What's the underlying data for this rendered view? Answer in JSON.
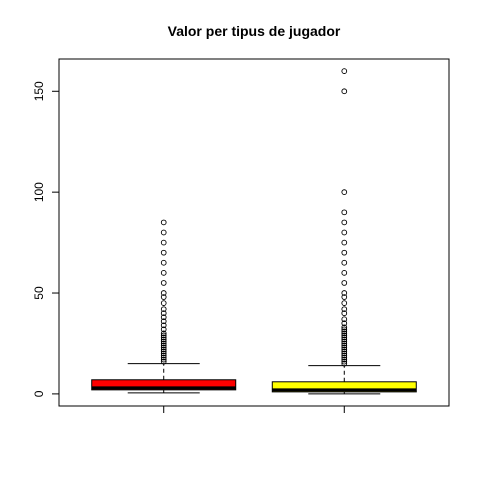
{
  "chart_data": {
    "type": "boxplot",
    "title": "Valor per tipus de jugador",
    "xlabel": "",
    "ylabel": "",
    "ylim": [
      -6,
      166
    ],
    "y_ticks": [
      0,
      50,
      100,
      150
    ],
    "x_tick_labels": [],
    "grid": false,
    "legend": "none",
    "series": [
      {
        "color": "#ff0000",
        "whisker_low": 0.5,
        "q1": 2,
        "median": 3,
        "q3": 7,
        "whisker_high": 15,
        "outliers": [
          16,
          17,
          18,
          19,
          20,
          21,
          22,
          23,
          24,
          25,
          26,
          27,
          28,
          29,
          30,
          32,
          34,
          36,
          38,
          40,
          42,
          45,
          48,
          50,
          55,
          60,
          65,
          70,
          75,
          80,
          85
        ]
      },
      {
        "color": "#ffff00",
        "whisker_low": 0,
        "q1": 1,
        "median": 2,
        "q3": 6,
        "whisker_high": 14,
        "outliers": [
          15,
          16,
          17,
          18,
          19,
          20,
          21,
          22,
          23,
          24,
          25,
          26,
          27,
          28,
          29,
          30,
          31,
          32,
          33,
          35,
          37,
          40,
          42,
          45,
          48,
          50,
          55,
          60,
          65,
          70,
          75,
          80,
          85,
          90,
          100,
          150,
          160
        ]
      }
    ]
  }
}
